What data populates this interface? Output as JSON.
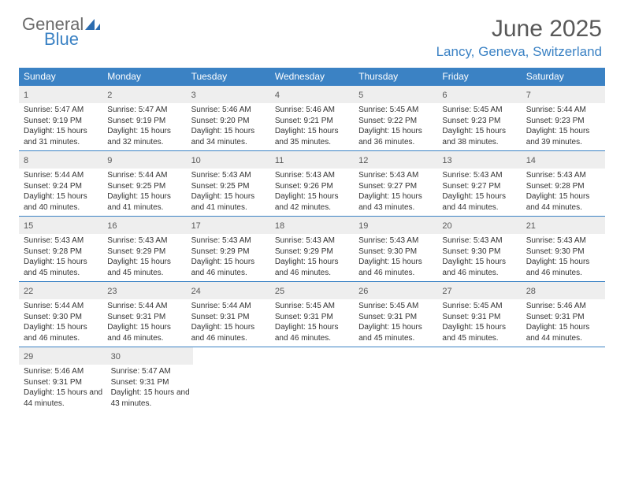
{
  "brand": {
    "part1": "General",
    "part2": "Blue",
    "icon_color": "#2b6cb0"
  },
  "header": {
    "month_title": "June 2025",
    "location": "Lancy, Geneva, Switzerland"
  },
  "weekdays": [
    "Sunday",
    "Monday",
    "Tuesday",
    "Wednesday",
    "Thursday",
    "Friday",
    "Saturday"
  ],
  "colors": {
    "header_bar": "#3b82c4",
    "day_num_bg": "#eeeeee",
    "text": "#333333",
    "title_text": "#585858"
  },
  "weeks": [
    [
      {
        "n": "1",
        "sunrise": "5:47 AM",
        "sunset": "9:19 PM",
        "daylight": "15 hours and 31 minutes."
      },
      {
        "n": "2",
        "sunrise": "5:47 AM",
        "sunset": "9:19 PM",
        "daylight": "15 hours and 32 minutes."
      },
      {
        "n": "3",
        "sunrise": "5:46 AM",
        "sunset": "9:20 PM",
        "daylight": "15 hours and 34 minutes."
      },
      {
        "n": "4",
        "sunrise": "5:46 AM",
        "sunset": "9:21 PM",
        "daylight": "15 hours and 35 minutes."
      },
      {
        "n": "5",
        "sunrise": "5:45 AM",
        "sunset": "9:22 PM",
        "daylight": "15 hours and 36 minutes."
      },
      {
        "n": "6",
        "sunrise": "5:45 AM",
        "sunset": "9:23 PM",
        "daylight": "15 hours and 38 minutes."
      },
      {
        "n": "7",
        "sunrise": "5:44 AM",
        "sunset": "9:23 PM",
        "daylight": "15 hours and 39 minutes."
      }
    ],
    [
      {
        "n": "8",
        "sunrise": "5:44 AM",
        "sunset": "9:24 PM",
        "daylight": "15 hours and 40 minutes."
      },
      {
        "n": "9",
        "sunrise": "5:44 AM",
        "sunset": "9:25 PM",
        "daylight": "15 hours and 41 minutes."
      },
      {
        "n": "10",
        "sunrise": "5:43 AM",
        "sunset": "9:25 PM",
        "daylight": "15 hours and 41 minutes."
      },
      {
        "n": "11",
        "sunrise": "5:43 AM",
        "sunset": "9:26 PM",
        "daylight": "15 hours and 42 minutes."
      },
      {
        "n": "12",
        "sunrise": "5:43 AM",
        "sunset": "9:27 PM",
        "daylight": "15 hours and 43 minutes."
      },
      {
        "n": "13",
        "sunrise": "5:43 AM",
        "sunset": "9:27 PM",
        "daylight": "15 hours and 44 minutes."
      },
      {
        "n": "14",
        "sunrise": "5:43 AM",
        "sunset": "9:28 PM",
        "daylight": "15 hours and 44 minutes."
      }
    ],
    [
      {
        "n": "15",
        "sunrise": "5:43 AM",
        "sunset": "9:28 PM",
        "daylight": "15 hours and 45 minutes."
      },
      {
        "n": "16",
        "sunrise": "5:43 AM",
        "sunset": "9:29 PM",
        "daylight": "15 hours and 45 minutes."
      },
      {
        "n": "17",
        "sunrise": "5:43 AM",
        "sunset": "9:29 PM",
        "daylight": "15 hours and 46 minutes."
      },
      {
        "n": "18",
        "sunrise": "5:43 AM",
        "sunset": "9:29 PM",
        "daylight": "15 hours and 46 minutes."
      },
      {
        "n": "19",
        "sunrise": "5:43 AM",
        "sunset": "9:30 PM",
        "daylight": "15 hours and 46 minutes."
      },
      {
        "n": "20",
        "sunrise": "5:43 AM",
        "sunset": "9:30 PM",
        "daylight": "15 hours and 46 minutes."
      },
      {
        "n": "21",
        "sunrise": "5:43 AM",
        "sunset": "9:30 PM",
        "daylight": "15 hours and 46 minutes."
      }
    ],
    [
      {
        "n": "22",
        "sunrise": "5:44 AM",
        "sunset": "9:30 PM",
        "daylight": "15 hours and 46 minutes."
      },
      {
        "n": "23",
        "sunrise": "5:44 AM",
        "sunset": "9:31 PM",
        "daylight": "15 hours and 46 minutes."
      },
      {
        "n": "24",
        "sunrise": "5:44 AM",
        "sunset": "9:31 PM",
        "daylight": "15 hours and 46 minutes."
      },
      {
        "n": "25",
        "sunrise": "5:45 AM",
        "sunset": "9:31 PM",
        "daylight": "15 hours and 46 minutes."
      },
      {
        "n": "26",
        "sunrise": "5:45 AM",
        "sunset": "9:31 PM",
        "daylight": "15 hours and 45 minutes."
      },
      {
        "n": "27",
        "sunrise": "5:45 AM",
        "sunset": "9:31 PM",
        "daylight": "15 hours and 45 minutes."
      },
      {
        "n": "28",
        "sunrise": "5:46 AM",
        "sunset": "9:31 PM",
        "daylight": "15 hours and 44 minutes."
      }
    ],
    [
      {
        "n": "29",
        "sunrise": "5:46 AM",
        "sunset": "9:31 PM",
        "daylight": "15 hours and 44 minutes."
      },
      {
        "n": "30",
        "sunrise": "5:47 AM",
        "sunset": "9:31 PM",
        "daylight": "15 hours and 43 minutes."
      },
      null,
      null,
      null,
      null,
      null
    ]
  ],
  "labels": {
    "sunrise": "Sunrise:",
    "sunset": "Sunset:",
    "daylight": "Daylight:"
  }
}
